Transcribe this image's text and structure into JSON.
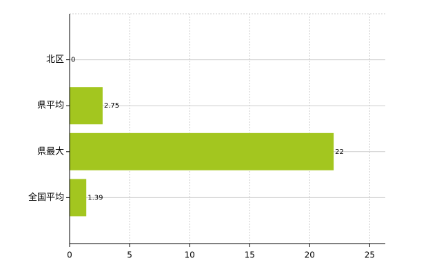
{
  "chart_data": {
    "type": "bar",
    "orientation": "horizontal",
    "categories": [
      "北区",
      "県平均",
      "県最大",
      "全国平均"
    ],
    "values": [
      0,
      2.75,
      22,
      1.39
    ],
    "color": "#a3c61f",
    "xlim": [
      0,
      26.3
    ],
    "xticks": [
      0,
      5,
      10,
      15,
      20,
      25
    ],
    "grid": true
  }
}
